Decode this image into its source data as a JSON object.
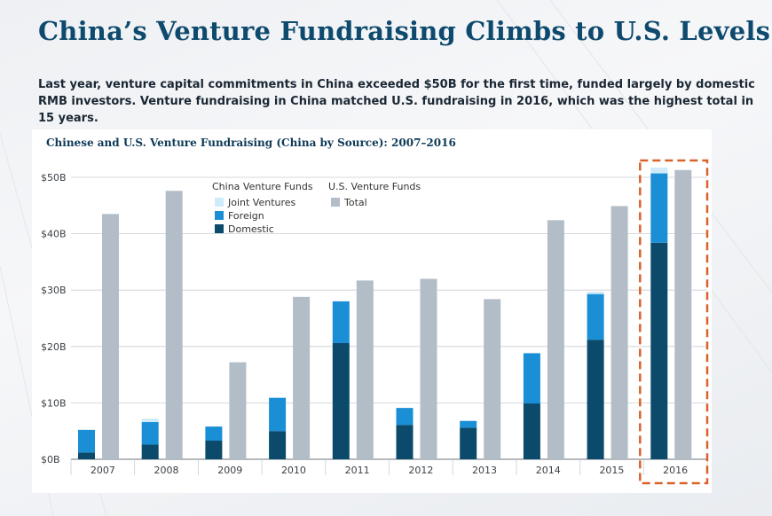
{
  "page": {
    "title": "China’s Venture Fundraising Climbs to U.S. Levels",
    "subtitle": "Last year, venture capital commitments in China exceeded $50B for the first time, funded largely by domestic RMB investors. Venture fundraising in China matched U.S. fundraising in 2016, which was the highest total in 15 years."
  },
  "colors": {
    "domestic": "#0b4a6b",
    "foreign": "#1a8fd6",
    "joint_ventures": "#cdebf8",
    "us_total": "#b3bdc8",
    "highlight": "#d9622b"
  },
  "chart_data": {
    "type": "bar",
    "title": "Chinese and U.S. Venture Fundraising (China by Source): 2007–2016",
    "categories": [
      "2007",
      "2008",
      "2009",
      "2010",
      "2011",
      "2012",
      "2013",
      "2014",
      "2015",
      "2016"
    ],
    "stacked_group": "China Venture Funds",
    "series": [
      {
        "name": "Domestic",
        "group": "China Venture Funds",
        "values": [
          1.2,
          2.6,
          3.3,
          5.0,
          20.6,
          6.1,
          5.6,
          9.9,
          21.2,
          38.4
        ]
      },
      {
        "name": "Foreign",
        "group": "China Venture Funds",
        "values": [
          4.0,
          4.0,
          2.5,
          5.9,
          7.4,
          3.0,
          1.2,
          8.9,
          8.1,
          12.3
        ]
      },
      {
        "name": "Joint Ventures",
        "group": "China Venture Funds",
        "values": [
          0.1,
          0.6,
          0.0,
          0.0,
          0.1,
          0.0,
          0.0,
          0.1,
          0.4,
          1.0
        ]
      },
      {
        "name": "Total",
        "group": "U.S. Venture Funds",
        "values": [
          43.5,
          47.6,
          17.2,
          28.8,
          31.7,
          32.0,
          28.4,
          42.4,
          44.9,
          51.3
        ]
      }
    ],
    "legend_groups": [
      "China Venture Funds",
      "U.S. Venture Funds"
    ],
    "y_ticks": [
      "$0B",
      "$10B",
      "$20B",
      "$30B",
      "$40B",
      "$50B"
    ],
    "ylim": [
      0,
      50
    ],
    "highlight_category": "2016",
    "legend_position": "top-left",
    "grid": true
  }
}
